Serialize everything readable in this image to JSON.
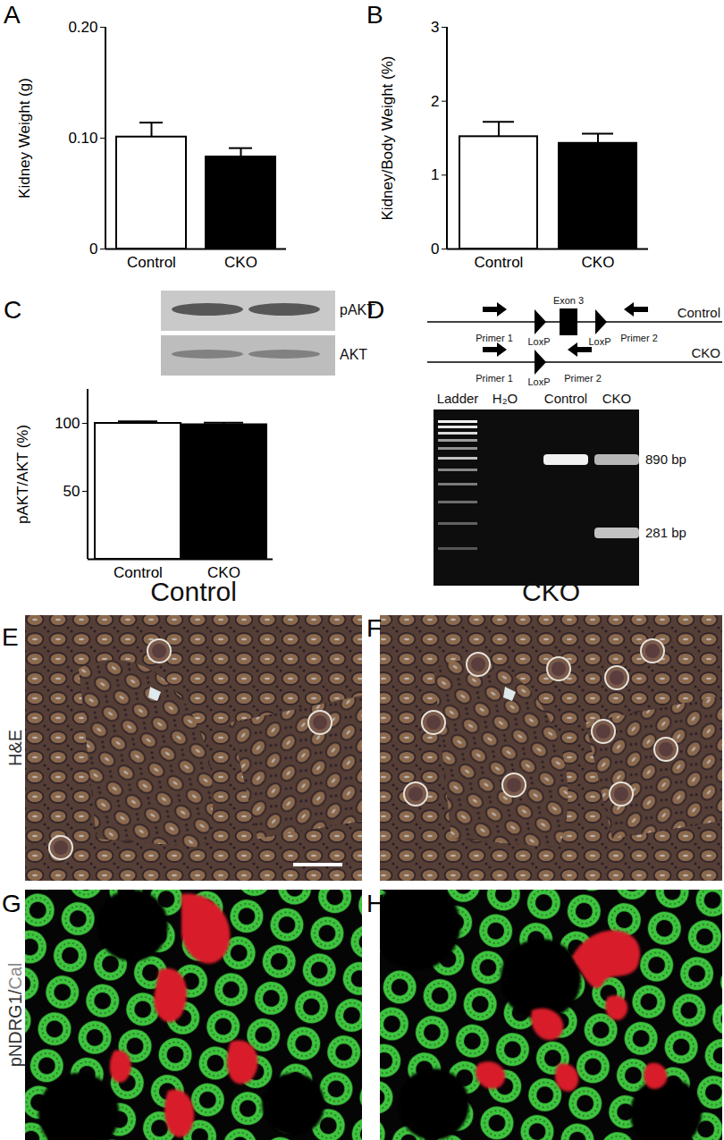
{
  "chart_data": [
    {
      "type": "bar",
      "panel": "A",
      "ylabel": "Kidney Weight (g)",
      "categories": [
        "Control",
        "CKO"
      ],
      "values": [
        0.101,
        0.083
      ],
      "errors": [
        0.013,
        0.008
      ],
      "colors": [
        "#ffffff",
        "#000000"
      ],
      "ylim": [
        0,
        0.2
      ],
      "yticks": [
        0,
        {
          "value": 0.1,
          "label": "0.10"
        },
        {
          "value": 0.2,
          "label": "0.20"
        }
      ]
    },
    {
      "type": "bar",
      "panel": "B",
      "ylabel": "Kidney/Body Weight (%)",
      "categories": [
        "Control",
        "CKO"
      ],
      "values": [
        1.52,
        1.43
      ],
      "errors": [
        0.2,
        0.13
      ],
      "colors": [
        "#ffffff",
        "#000000"
      ],
      "ylim": [
        0,
        3
      ],
      "yticks": [
        0,
        1,
        2,
        3
      ]
    },
    {
      "type": "bar",
      "panel": "C",
      "ylabel": "pAKT/AKT (%)",
      "categories": [
        "Control",
        "CKO"
      ],
      "values": [
        100,
        99
      ],
      "errors": [
        1.5,
        1.5
      ],
      "colors": [
        "#ffffff",
        "#000000"
      ],
      "ylim": [
        0,
        125
      ],
      "yticks": [
        50,
        100
      ]
    }
  ],
  "blot": {
    "labels": [
      "pAKT",
      "AKT"
    ]
  },
  "gel": {
    "panel": "D",
    "constructs": [
      {
        "name": "Control",
        "primers": [
          "Primer 1",
          "Primer 2"
        ],
        "loxp": [
          "LoxP",
          "LoxP"
        ],
        "exon": "Exon 3"
      },
      {
        "name": "CKO",
        "primers": [
          "Primer 1",
          "Primer 2"
        ],
        "loxp": [
          "LoxP"
        ]
      }
    ],
    "lanes": [
      {
        "name": "Ladder"
      },
      {
        "name": "H₂O",
        "bands": []
      },
      {
        "name": "Control",
        "bands": [
          890
        ]
      },
      {
        "name": "CKO",
        "bands": [
          890,
          281
        ]
      }
    ],
    "band_labels": [
      {
        "value": 890,
        "label": "890 bp"
      },
      {
        "value": 281,
        "label": "281 bp"
      }
    ]
  },
  "micrographs": {
    "columns": [
      "Control",
      "CKO"
    ],
    "rows": [
      {
        "label": [
          "H&E"
        ],
        "panels": [
          "E",
          "F"
        ]
      },
      {
        "label": [
          "pNDRG1/",
          "Cal"
        ],
        "panels": [
          "G",
          "H"
        ]
      }
    ]
  }
}
